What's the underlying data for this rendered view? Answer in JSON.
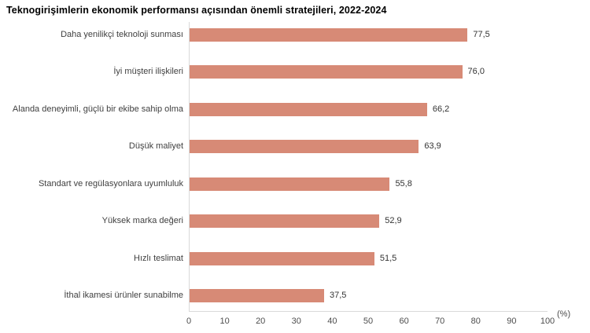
{
  "title": "Teknogirişimlerin ekonomik performansı açısından önemli stratejileri, 2022-2024",
  "chart_data": {
    "type": "bar",
    "orientation": "horizontal",
    "title": "Teknogirişimlerin ekonomik performansı açısından önemli stratejileri, 2022-2024",
    "categories": [
      "Daha yenilikçi teknoloji sunması",
      "İyi müşteri ilişkileri",
      "Alanda deneyimli, güçlü bir ekibe sahip olma",
      "Düşük maliyet",
      "Standart ve regülasyonlara uyumluluk",
      "Yüksek marka değeri",
      "Hızlı teslimat",
      "İthal ikamesi ürünler sunabilme"
    ],
    "values": [
      77.5,
      76.0,
      66.2,
      63.9,
      55.8,
      52.9,
      51.5,
      37.5
    ],
    "value_labels": [
      "77,5",
      "76,0",
      "66,2",
      "63,9",
      "55,8",
      "52,9",
      "51,5",
      "37,5"
    ],
    "xlabel": "(%)",
    "xticks": [
      0,
      10,
      20,
      30,
      40,
      50,
      60,
      70,
      80,
      90,
      100
    ],
    "xlim": [
      0,
      100
    ],
    "bar_color": "#d78a76",
    "axis_line_color": "#d9d9d9",
    "grid": false,
    "legend": null
  }
}
